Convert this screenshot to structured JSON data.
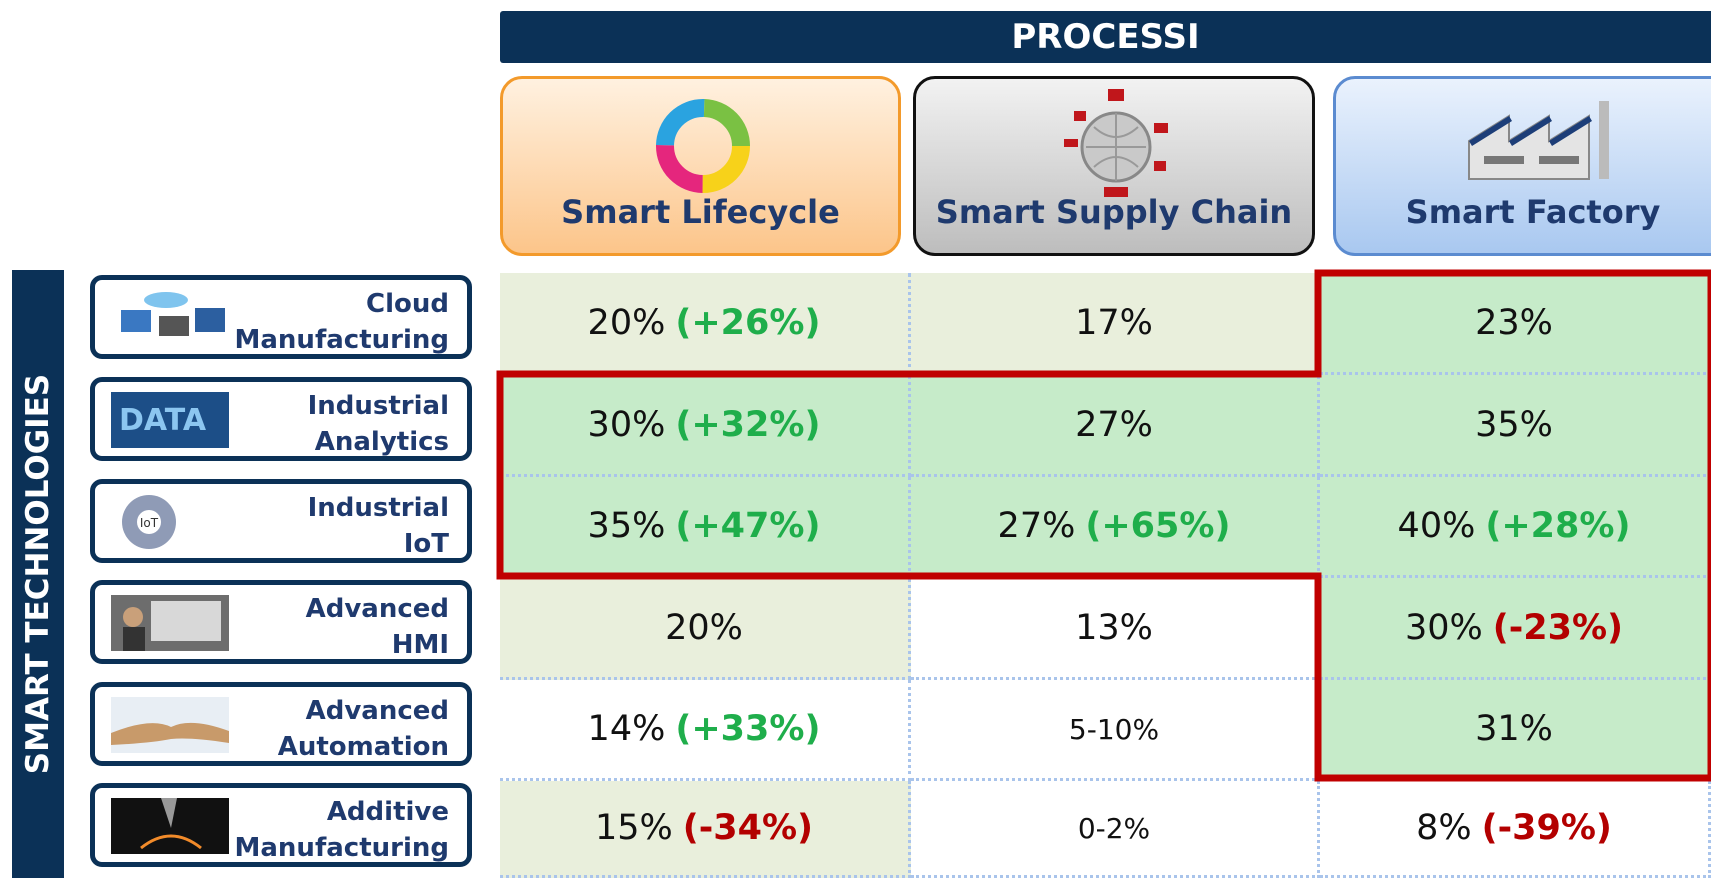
{
  "header": {
    "title": "PROCESSI",
    "side_title": "SMART TECHNOLOGIES"
  },
  "columns": [
    "Smart Lifecycle",
    "Smart Supply Chain",
    "Smart Factory"
  ],
  "rows": [
    {
      "label": [
        "Cloud",
        "Manufacturing"
      ],
      "cells": [
        {
          "value": "20%",
          "change": "(+26%)"
        },
        {
          "value": "17%"
        },
        {
          "value": "23%"
        }
      ]
    },
    {
      "label": [
        "Industrial",
        "Analytics"
      ],
      "cells": [
        {
          "value": "30%",
          "change": "(+32%)"
        },
        {
          "value": "27%"
        },
        {
          "value": "35%"
        }
      ]
    },
    {
      "label": [
        "Industrial",
        "IoT"
      ],
      "cells": [
        {
          "value": "35%",
          "change": "(+47%)"
        },
        {
          "value": "27%",
          "change": "(+65%)"
        },
        {
          "value": "40%",
          "change": "(+28%)"
        }
      ]
    },
    {
      "label": [
        "Advanced",
        "HMI"
      ],
      "cells": [
        {
          "value": "20%"
        },
        {
          "value": "13%"
        },
        {
          "value": "30%",
          "change": "(-23%)"
        }
      ]
    },
    {
      "label": [
        "Advanced",
        "Automation"
      ],
      "cells": [
        {
          "value": "14%",
          "change": "(+33%)"
        },
        {
          "value": "5-10%"
        },
        {
          "value": "31%"
        }
      ]
    },
    {
      "label": [
        "Additive",
        "Manufacturing"
      ],
      "cells": [
        {
          "value": "15%",
          "change": "(-34%)"
        },
        {
          "value": "0-2%"
        },
        {
          "value": "8%",
          "change": "(-39%)"
        }
      ]
    }
  ],
  "icon_labels": {
    "iot": "IoT",
    "data": "DATA"
  }
}
